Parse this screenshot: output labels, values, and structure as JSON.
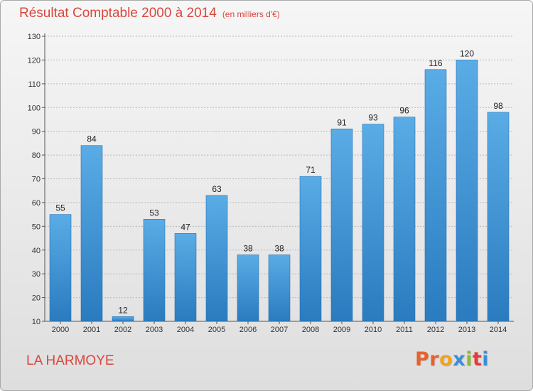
{
  "header": {
    "title": "Résultat Comptable 2000 à 2014",
    "unit": "(en milliers d'€)"
  },
  "footer": {
    "commune": "LA HARMOYE",
    "logo_text": "Proxiti"
  },
  "colors": {
    "title": "#d9473d",
    "bar_top": "#5aace6",
    "bar_bottom": "#2a7bbf",
    "logo_letters": [
      "#e8612c",
      "#e8612c",
      "#f2a31b",
      "#3b8fd6",
      "#8bbf2a",
      "#e23c3c",
      "#3b8fd6"
    ]
  },
  "chart_data": {
    "type": "bar",
    "title": "Résultat Comptable 2000 à 2014",
    "subtitle": "(en milliers d'€)",
    "categories": [
      "2000",
      "2001",
      "2002",
      "2003",
      "2004",
      "2005",
      "2006",
      "2007",
      "2008",
      "2009",
      "2010",
      "2011",
      "2012",
      "2013",
      "2014"
    ],
    "values": [
      55,
      84,
      12,
      53,
      47,
      63,
      38,
      38,
      71,
      91,
      93,
      96,
      116,
      120,
      98
    ],
    "ylim": [
      10,
      130
    ],
    "yticks": [
      10,
      20,
      30,
      40,
      50,
      60,
      70,
      80,
      90,
      100,
      110,
      120,
      130
    ],
    "grid": true,
    "legend": "none"
  }
}
